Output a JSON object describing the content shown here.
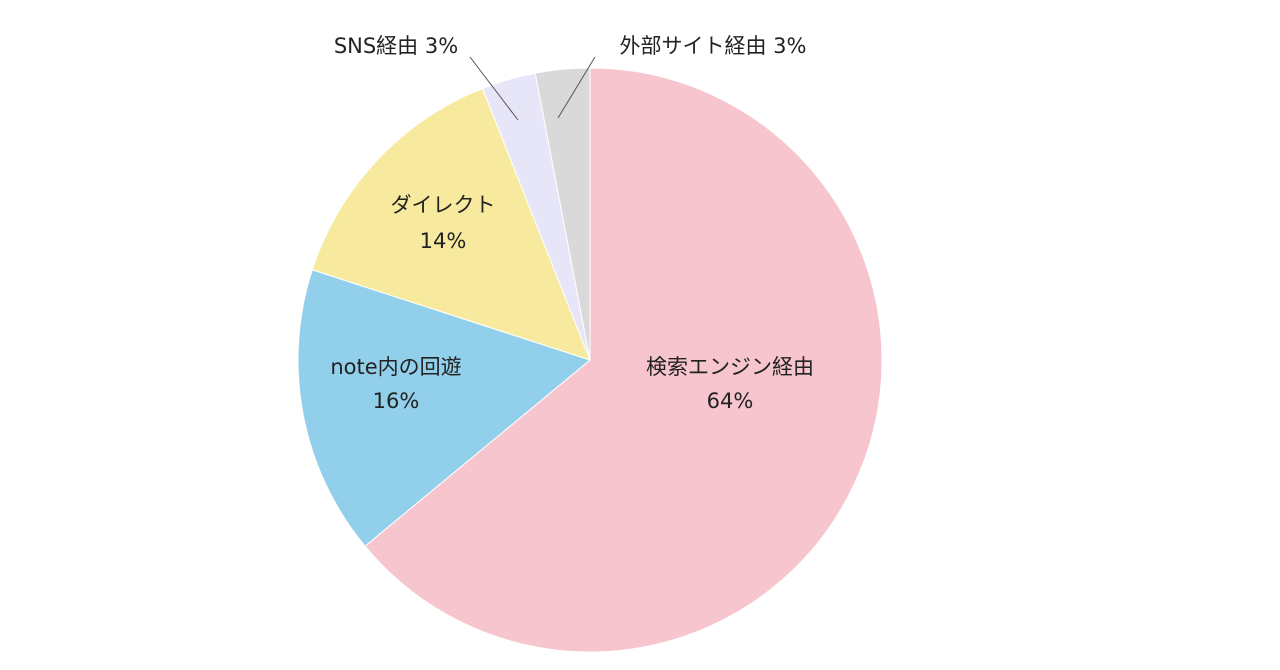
{
  "chart_data": {
    "type": "pie",
    "slices": [
      {
        "label": "検索エンジン経由",
        "value": 64,
        "display": "64%",
        "color": "#f7c5cd"
      },
      {
        "label": "note内の回遊",
        "value": 16,
        "display": "16%",
        "color": "#92cfea"
      },
      {
        "label": "ダイレクト",
        "value": 14,
        "display": "14%",
        "color": "#f7ea9f"
      },
      {
        "label": "SNS経由",
        "value": 3,
        "display": "3%",
        "color": "#e6e6f8"
      },
      {
        "label": "外部サイト経由",
        "value": 3,
        "display": "3%",
        "color": "#d9d9d9"
      }
    ],
    "start": "12 o'clock",
    "direction": "clockwise",
    "legend": "none"
  }
}
